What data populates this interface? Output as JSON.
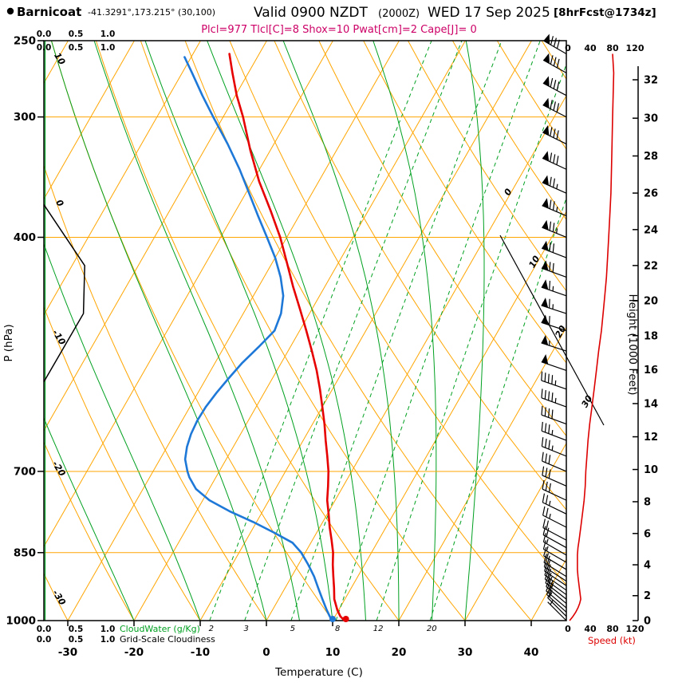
{
  "colors": {
    "grid_orange": "#FFA500",
    "green": "#00A020",
    "temp_red": "#E60000",
    "dewpoint_blue": "#1E78D7",
    "speed_red": "#DD0000",
    "magenta": "#CC0066",
    "black": "#000000"
  },
  "header": {
    "station": "Barnicoat",
    "coords": "-41.3291°,173.215° (30,100)",
    "valid": "Valid 0900 NZDT",
    "valid_z": "(2000Z)",
    "valid_date": "WED 17 Sep 2025",
    "fcst_tag": "[8hrFcst@1734z]",
    "params": "Plcl=977 Tlcl[C]=8 Shox=10 Pwat[cm]=2 Cape[J]= 0"
  },
  "axis_labels": {
    "pressure": "P (hPa)",
    "temperature": "Temperature (C)",
    "height": "Height (1000 Feet)",
    "speed": "Speed (kt)",
    "cloudwater": "CloudWater (g/Kg)",
    "cloudiness": "Grid-Scale Cloudiness"
  },
  "chart_data": {
    "type": "skewt_log_p_sounding",
    "pressure_ticks": [
      250,
      300,
      400,
      700,
      850,
      1000
    ],
    "temperature_ticks": [
      -30,
      -20,
      -10,
      0,
      10,
      20,
      30,
      40
    ],
    "height_ticks_kft": [
      0,
      2,
      4,
      6,
      8,
      10,
      12,
      14,
      16,
      18,
      20,
      22,
      24,
      26,
      28,
      30,
      32
    ],
    "speed_ticks_kt": [
      0,
      40,
      80,
      120
    ],
    "cloud_scale_ticks": [
      "0.0",
      "0.5",
      "1.0"
    ],
    "isotherm_label_values": [
      0,
      10,
      20,
      30
    ],
    "dry_adiabat_label_values": [
      10,
      0,
      -10,
      -20,
      -30
    ],
    "mixing_ratio_lines_gkg": [
      2,
      3,
      5,
      8,
      12,
      20
    ],
    "moist_adiabat_start_temps_c": [
      -20,
      -10,
      0,
      5,
      10,
      15,
      20,
      25,
      30
    ],
    "surface_temp_c": 12,
    "surface_dewpoint_c": 10,
    "temperature_profile": [
      {
        "p": 1000,
        "t": 11.8
      },
      {
        "p": 990,
        "t": 10.8
      },
      {
        "p": 975,
        "t": 9.8
      },
      {
        "p": 950,
        "t": 8.4
      },
      {
        "p": 925,
        "t": 7.4
      },
      {
        "p": 900,
        "t": 6.3
      },
      {
        "p": 875,
        "t": 5.2
      },
      {
        "p": 850,
        "t": 4.2
      },
      {
        "p": 825,
        "t": 2.9
      },
      {
        "p": 800,
        "t": 1.5
      },
      {
        "p": 775,
        "t": 0.2
      },
      {
        "p": 750,
        "t": -1.2
      },
      {
        "p": 725,
        "t": -2.3
      },
      {
        "p": 700,
        "t": -3.5
      },
      {
        "p": 675,
        "t": -5
      },
      {
        "p": 650,
        "t": -6.6
      },
      {
        "p": 625,
        "t": -8.2
      },
      {
        "p": 600,
        "t": -10
      },
      {
        "p": 575,
        "t": -11.9
      },
      {
        "p": 550,
        "t": -14
      },
      {
        "p": 525,
        "t": -16.4
      },
      {
        "p": 500,
        "t": -19
      },
      {
        "p": 475,
        "t": -21.8
      },
      {
        "p": 450,
        "t": -24.8
      },
      {
        "p": 425,
        "t": -27.8
      },
      {
        "p": 400,
        "t": -31
      },
      {
        "p": 375,
        "t": -34.8
      },
      {
        "p": 350,
        "t": -39
      },
      {
        "p": 325,
        "t": -43
      },
      {
        "p": 300,
        "t": -47
      },
      {
        "p": 285,
        "t": -49.8
      },
      {
        "p": 270,
        "t": -52.4
      },
      {
        "p": 258,
        "t": -54.5
      }
    ],
    "dewpoint_profile": [
      {
        "p": 1000,
        "t": 9.9
      },
      {
        "p": 990,
        "t": 9.2
      },
      {
        "p": 975,
        "t": 8.2
      },
      {
        "p": 950,
        "t": 6.6
      },
      {
        "p": 925,
        "t": 5
      },
      {
        "p": 900,
        "t": 3.4
      },
      {
        "p": 875,
        "t": 1.5
      },
      {
        "p": 850,
        "t": -0.6
      },
      {
        "p": 830,
        "t": -2.8
      },
      {
        "p": 810,
        "t": -6.5
      },
      {
        "p": 790,
        "t": -10.5
      },
      {
        "p": 770,
        "t": -15
      },
      {
        "p": 750,
        "t": -19
      },
      {
        "p": 730,
        "t": -22
      },
      {
        "p": 710,
        "t": -24
      },
      {
        "p": 700,
        "t": -24.8
      },
      {
        "p": 680,
        "t": -26.2
      },
      {
        "p": 660,
        "t": -27
      },
      {
        "p": 640,
        "t": -27.5
      },
      {
        "p": 620,
        "t": -27.7
      },
      {
        "p": 600,
        "t": -27.6
      },
      {
        "p": 580,
        "t": -27.2
      },
      {
        "p": 560,
        "t": -26.6
      },
      {
        "p": 540,
        "t": -25.9
      },
      {
        "p": 520,
        "t": -24.8
      },
      {
        "p": 500,
        "t": -23.8
      },
      {
        "p": 480,
        "t": -24.3
      },
      {
        "p": 460,
        "t": -25.5
      },
      {
        "p": 440,
        "t": -27.5
      },
      {
        "p": 420,
        "t": -30
      },
      {
        "p": 400,
        "t": -33
      },
      {
        "p": 380,
        "t": -36.2
      },
      {
        "p": 360,
        "t": -39.5
      },
      {
        "p": 340,
        "t": -43
      },
      {
        "p": 320,
        "t": -47
      },
      {
        "p": 300,
        "t": -51.5
      },
      {
        "p": 285,
        "t": -55
      },
      {
        "p": 270,
        "t": -58.5
      },
      {
        "p": 260,
        "t": -61
      }
    ],
    "wind_profile": [
      {
        "p": 1000,
        "spd": 3,
        "dir": 315
      },
      {
        "p": 990,
        "spd": 9,
        "dir": 315
      },
      {
        "p": 980,
        "spd": 14,
        "dir": 312
      },
      {
        "p": 970,
        "spd": 18,
        "dir": 310
      },
      {
        "p": 960,
        "spd": 21,
        "dir": 310
      },
      {
        "p": 950,
        "spd": 23,
        "dir": 308
      },
      {
        "p": 940,
        "spd": 22,
        "dir": 306
      },
      {
        "p": 930,
        "spd": 21,
        "dir": 305
      },
      {
        "p": 920,
        "spd": 20,
        "dir": 304
      },
      {
        "p": 910,
        "spd": 19,
        "dir": 303
      },
      {
        "p": 900,
        "spd": 18,
        "dir": 302
      },
      {
        "p": 885,
        "spd": 17,
        "dir": 301
      },
      {
        "p": 870,
        "spd": 17,
        "dir": 300
      },
      {
        "p": 855,
        "spd": 17,
        "dir": 300
      },
      {
        "p": 840,
        "spd": 18,
        "dir": 299
      },
      {
        "p": 825,
        "spd": 20,
        "dir": 298
      },
      {
        "p": 800,
        "spd": 23,
        "dir": 297
      },
      {
        "p": 775,
        "spd": 26,
        "dir": 296
      },
      {
        "p": 750,
        "spd": 29,
        "dir": 295
      },
      {
        "p": 725,
        "spd": 31,
        "dir": 294
      },
      {
        "p": 700,
        "spd": 32,
        "dir": 293
      },
      {
        "p": 675,
        "spd": 34,
        "dir": 292
      },
      {
        "p": 650,
        "spd": 36,
        "dir": 291
      },
      {
        "p": 625,
        "spd": 39,
        "dir": 290
      },
      {
        "p": 600,
        "spd": 43,
        "dir": 290
      },
      {
        "p": 575,
        "spd": 47,
        "dir": 289
      },
      {
        "p": 550,
        "spd": 51,
        "dir": 289
      },
      {
        "p": 525,
        "spd": 55,
        "dir": 288
      },
      {
        "p": 500,
        "spd": 60,
        "dir": 288
      },
      {
        "p": 480,
        "spd": 63,
        "dir": 288
      },
      {
        "p": 460,
        "spd": 66,
        "dir": 289
      },
      {
        "p": 440,
        "spd": 69,
        "dir": 290
      },
      {
        "p": 420,
        "spd": 71,
        "dir": 291
      },
      {
        "p": 400,
        "spd": 73,
        "dir": 292
      },
      {
        "p": 380,
        "spd": 75,
        "dir": 293
      },
      {
        "p": 360,
        "spd": 77,
        "dir": 294
      },
      {
        "p": 340,
        "spd": 78,
        "dir": 295
      },
      {
        "p": 320,
        "spd": 79,
        "dir": 296
      },
      {
        "p": 300,
        "spd": 80,
        "dir": 297
      },
      {
        "p": 285,
        "spd": 81,
        "dir": 298
      },
      {
        "p": 270,
        "spd": 82,
        "dir": 299
      },
      {
        "p": 258,
        "spd": 80,
        "dir": 300
      }
    ],
    "cloudiness_profile": [
      {
        "p": 565,
        "v": 0
      },
      {
        "p": 480,
        "v": 0.62
      },
      {
        "p": 428,
        "v": 0.64
      },
      {
        "p": 370,
        "v": 0
      }
    ],
    "cloudwater_profile": [
      {
        "p": 1000,
        "v": 0
      },
      {
        "p": 250,
        "v": 0
      }
    ]
  }
}
